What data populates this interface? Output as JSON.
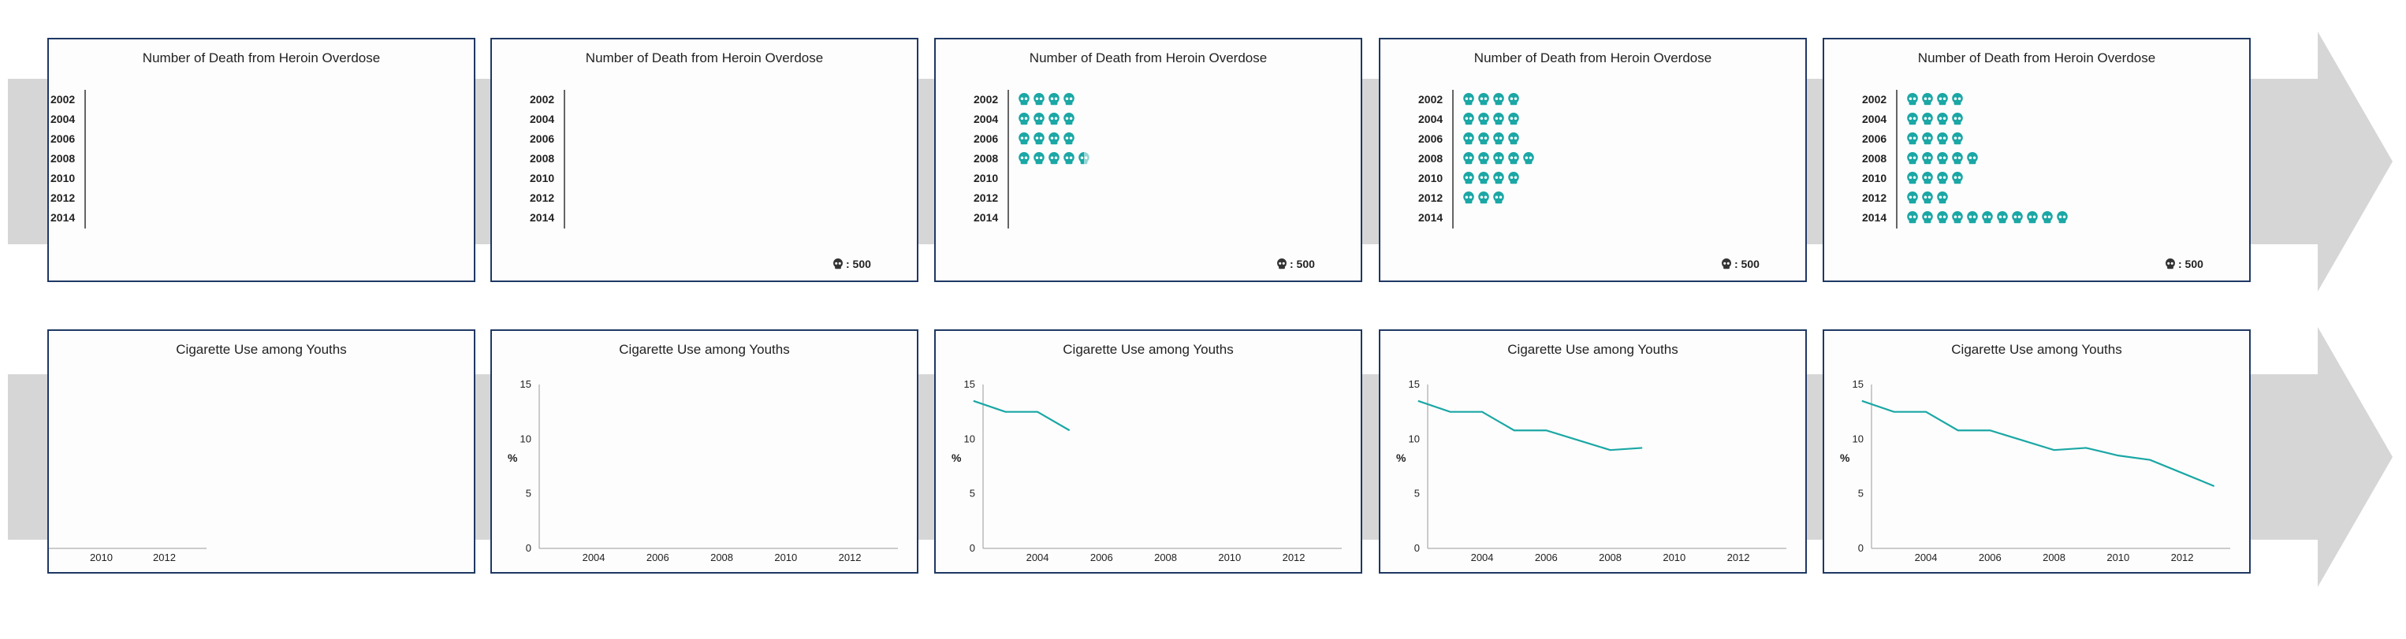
{
  "colors": {
    "accent": "#1aa7a5",
    "border": "#1f3864",
    "arrow": "#d6d6d6"
  },
  "icon": "skull-icon",
  "heroin": {
    "title": "Number of Death from Heroin Overdose",
    "legend": ": 500",
    "years": [
      "2002",
      "2004",
      "2006",
      "2008",
      "2010",
      "2012",
      "2014"
    ]
  },
  "cig": {
    "title": "Cigarette Use among Youths",
    "ylabel": "%",
    "yticks": [
      "0",
      "5",
      "10",
      "15"
    ],
    "xticks": [
      "2004",
      "2006",
      "2008",
      "2010",
      "2012"
    ]
  },
  "chart_data": [
    {
      "type": "bar",
      "title": "Number of Death from Heroin Overdose",
      "unit": "1 icon = 500",
      "categories": [
        "2002",
        "2004",
        "2006",
        "2008",
        "2010",
        "2012",
        "2014"
      ],
      "values": [
        2000,
        2000,
        2000,
        2500,
        2000,
        1500,
        5500
      ]
    },
    {
      "type": "line",
      "title": "Cigarette Use among Youths",
      "ylabel": "%",
      "ylim": [
        0,
        15
      ],
      "x": [
        2002,
        2003,
        2004,
        2005,
        2006,
        2007,
        2008,
        2009,
        2010,
        2011,
        2012,
        2013
      ],
      "y": [
        13.5,
        12.5,
        12.5,
        10.8,
        10.8,
        9.9,
        9.0,
        9.2,
        8.5,
        8.1,
        6.9,
        5.7
      ]
    }
  ],
  "stages": {
    "heroin": [
      {
        "show_axis": true,
        "show_legend": false,
        "icons": [
          0,
          0,
          0,
          0,
          0,
          0,
          0
        ],
        "partial": [
          0,
          0,
          0,
          0,
          0,
          0,
          0
        ]
      },
      {
        "show_axis": true,
        "show_legend": true,
        "icons": [
          0,
          0,
          0,
          0,
          0,
          0,
          0
        ],
        "partial": [
          0,
          0,
          0,
          0,
          0,
          0,
          0
        ]
      },
      {
        "show_axis": true,
        "show_legend": true,
        "icons": [
          4,
          4,
          4,
          4,
          0,
          0,
          0
        ],
        "partial": [
          0,
          0,
          0,
          1,
          0,
          0,
          0
        ]
      },
      {
        "show_axis": true,
        "show_legend": true,
        "icons": [
          4,
          4,
          4,
          5,
          4,
          3,
          0
        ],
        "partial": [
          0,
          0,
          0,
          0,
          0,
          0,
          0
        ]
      },
      {
        "show_axis": true,
        "show_legend": true,
        "icons": [
          4,
          4,
          4,
          5,
          4,
          3,
          11
        ],
        "partial": [
          0,
          0,
          0,
          0,
          0,
          0,
          0
        ]
      }
    ],
    "cig": [
      {
        "show_axis": false,
        "line_points": 0
      },
      {
        "show_axis": true,
        "line_points": 0
      },
      {
        "show_axis": true,
        "line_points": 4
      },
      {
        "show_axis": true,
        "line_points": 8
      },
      {
        "show_axis": true,
        "line_points": 12
      }
    ],
    "stage0_cig_ticks": [
      "2010",
      "2012"
    ]
  }
}
